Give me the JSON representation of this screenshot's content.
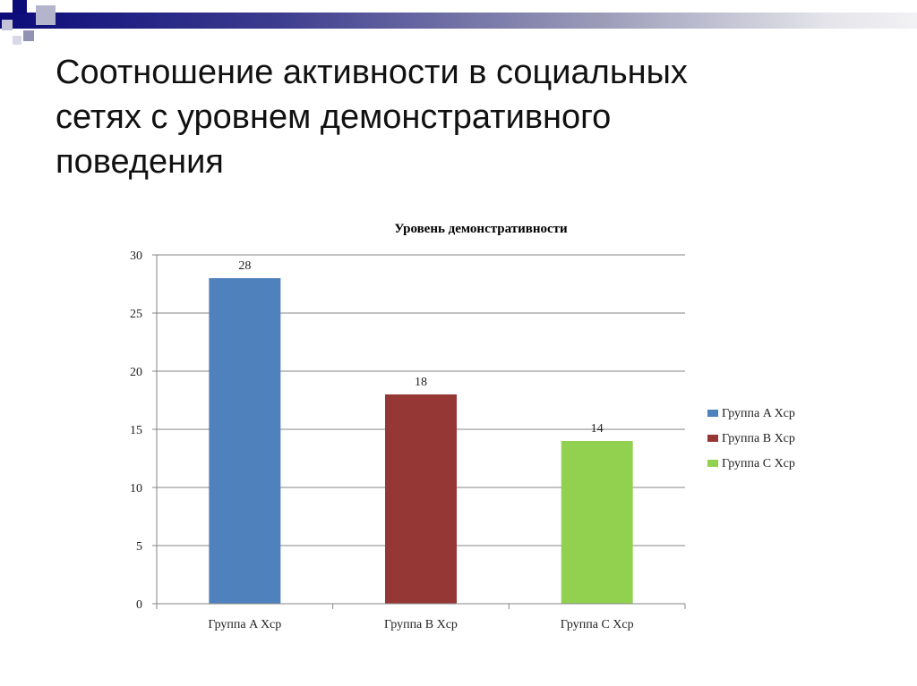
{
  "slide": {
    "title_lines": [
      "Соотношение активности в социальных",
      "сетях с уровнем демонстративного",
      "поведения"
    ]
  },
  "colors": {
    "deco_dark": "#0b0b7a",
    "deco_light": "#9a9ab8",
    "grid": "#868686"
  },
  "chart_data": {
    "type": "bar",
    "title": "Уровень демонстративности",
    "categories": [
      "Группа A Хср",
      "Группа B Хср",
      "Группа C Хср"
    ],
    "series": [
      {
        "name": "Группа A Хср",
        "color": "#4f81bd",
        "values": [
          28,
          null,
          null
        ]
      },
      {
        "name": "Группа B Хср",
        "color": "#953735",
        "values": [
          null,
          18,
          null
        ]
      },
      {
        "name": "Группа C Хср",
        "color": "#92d050",
        "values": [
          null,
          null,
          14
        ]
      }
    ],
    "values": [
      28,
      18,
      14
    ],
    "data_labels": [
      "28",
      "18",
      "14"
    ],
    "ylim": [
      0,
      30
    ],
    "yticks": [
      0,
      5,
      10,
      15,
      20,
      25,
      30
    ],
    "xlabel": "",
    "ylabel": "",
    "grid": true,
    "legend_position": "right"
  }
}
